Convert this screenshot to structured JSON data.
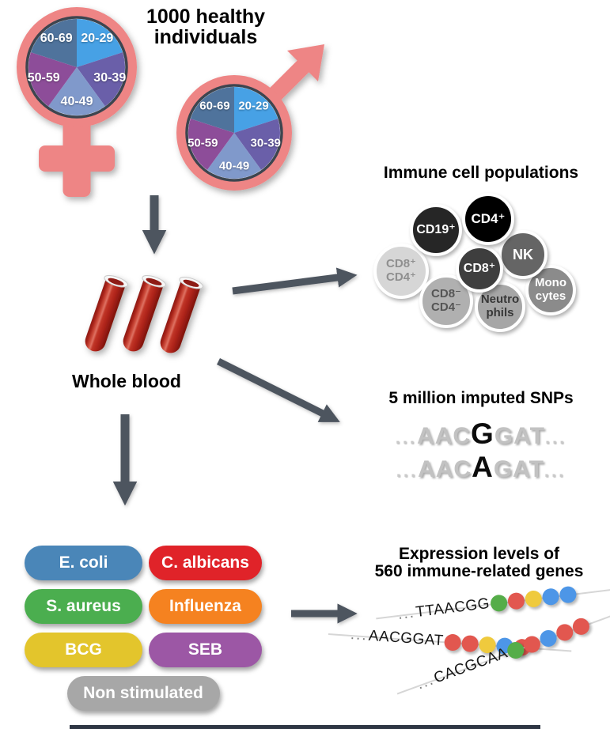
{
  "titles": {
    "cohort": "1000 healthy\nindividuals",
    "immune": "Immune cell populations",
    "blood": "Whole blood",
    "snps": "5 million imputed SNPs",
    "expression": "Expression levels of\n560 immune-related genes"
  },
  "colors": {
    "symbol_pink": "#ee8585",
    "ring": "#3e4450",
    "arrow": "#4e545f",
    "blood_red": "#b3251c"
  },
  "age_pie": {
    "slices": [
      {
        "label": "20-29",
        "color": "#47a1e5"
      },
      {
        "label": "30-39",
        "color": "#6a5fa9"
      },
      {
        "label": "40-49",
        "color": "#8099cb"
      },
      {
        "label": "50-59",
        "color": "#8d4d99"
      },
      {
        "label": "60-69",
        "color": "#50739c"
      }
    ]
  },
  "immune_cells": {
    "cells": [
      {
        "label": "CD8⁺\nCD4⁺",
        "bg": "#d6d6d6",
        "fg": "#8f8f8f"
      },
      {
        "label": "CD8⁻\nCD4⁻",
        "bg": "#b0b0b0",
        "fg": "#555555"
      },
      {
        "label": "Neutro\nphils",
        "bg": "#a6a6a6",
        "fg": "#383838"
      },
      {
        "label": "Mono\ncytes",
        "bg": "#8b8b8b",
        "fg": "#ffffff"
      },
      {
        "label": "NK",
        "bg": "#656565",
        "fg": "#ffffff"
      },
      {
        "label": "CD8⁺",
        "bg": "#3e3e3e",
        "fg": "#ffffff"
      },
      {
        "label": "CD19⁺",
        "bg": "#262626",
        "fg": "#ffffff"
      },
      {
        "label": "CD4⁺",
        "bg": "#000000",
        "fg": "#ffffff"
      }
    ]
  },
  "snps": {
    "ellipsis": "...",
    "sequences": [
      {
        "pre": "AAC",
        "snp": "G",
        "post": "GAT"
      },
      {
        "pre": "AAC",
        "snp": "A",
        "post": "GAT"
      }
    ]
  },
  "stimuli": [
    {
      "label": "E. coli",
      "color": "#4a86b8"
    },
    {
      "label": "C. albicans",
      "color": "#e02329"
    },
    {
      "label": "S. aureus",
      "color": "#4bae4f"
    },
    {
      "label": "Influenza",
      "color": "#f58220"
    },
    {
      "label": "BCG",
      "color": "#e3c52c"
    },
    {
      "label": "SEB",
      "color": "#9c57a5"
    },
    {
      "label": "Non stimulated",
      "color": "#a7a7a7"
    }
  ],
  "expression": {
    "dot_colors": {
      "green": "#55ad49",
      "red": "#e2574f",
      "yellow": "#efca3d",
      "blue": "#4d96e7"
    },
    "rows": [
      {
        "seq": "TTAACGG",
        "dots": [
          "green",
          "red",
          "yellow",
          "blue",
          "blue"
        ]
      },
      {
        "seq": "AACGGAT",
        "dots": [
          "red",
          "red",
          "yellow",
          "blue",
          "red"
        ]
      },
      {
        "seq": "CACGCAA",
        "dots": [
          "green",
          "red",
          "blue",
          "red",
          "red"
        ]
      }
    ]
  }
}
